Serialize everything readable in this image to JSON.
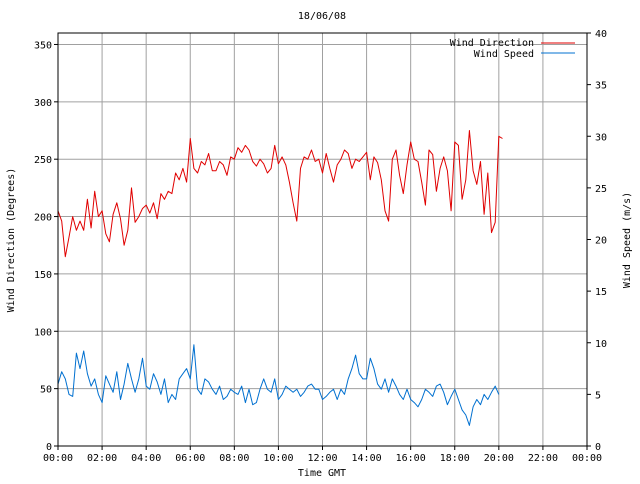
{
  "chart_data": {
    "type": "line",
    "title": "18/06/08",
    "xlabel": "Time GMT",
    "ylabel_left": "Wind Direction (Degrees)",
    "ylabel_right": "Wind Speed (m/s)",
    "x_ticks": [
      "00:00",
      "02:00",
      "04:00",
      "06:00",
      "08:00",
      "10:00",
      "12:00",
      "14:00",
      "16:00",
      "18:00",
      "20:00",
      "22:00",
      "00:00"
    ],
    "x_range_hours": [
      0,
      24
    ],
    "y_left_range": [
      0,
      360
    ],
    "y_left_ticks": [
      "0",
      "50",
      "100",
      "150",
      "200",
      "250",
      "300",
      "350"
    ],
    "y_right_range": [
      0,
      40
    ],
    "y_right_ticks": [
      "0",
      "5",
      "10",
      "15",
      "20",
      "25",
      "30",
      "35",
      "40"
    ],
    "grid": true,
    "legend_position": "top-right",
    "series": [
      {
        "name": "Wind Direction",
        "axis": "left",
        "color": "#e00000",
        "sample_interval_min": 10,
        "values": [
          205,
          196,
          165,
          182,
          200,
          188,
          196,
          188,
          215,
          190,
          222,
          200,
          205,
          185,
          178,
          202,
          212,
          198,
          175,
          188,
          225,
          195,
          200,
          207,
          210,
          203,
          212,
          198,
          220,
          215,
          222,
          220,
          238,
          232,
          242,
          230,
          268,
          242,
          238,
          248,
          245,
          255,
          240,
          240,
          248,
          245,
          236,
          252,
          250,
          260,
          256,
          262,
          258,
          248,
          244,
          250,
          246,
          238,
          242,
          262,
          246,
          252,
          245,
          230,
          212,
          196,
          242,
          252,
          250,
          258,
          248,
          250,
          238,
          255,
          242,
          230,
          245,
          250,
          258,
          255,
          242,
          250,
          248,
          252,
          256,
          232,
          252,
          247,
          232,
          205,
          196,
          250,
          258,
          236,
          220,
          245,
          265,
          250,
          248,
          230,
          210,
          258,
          254,
          222,
          242,
          252,
          240,
          205,
          265,
          262,
          215,
          232,
          275,
          240,
          228,
          248,
          202,
          238,
          186,
          195,
          270,
          268
        ]
      },
      {
        "name": "Wind Speed",
        "axis": "right",
        "color": "#0070d0",
        "sample_interval_min": 10,
        "values": [
          6,
          7.2,
          6.5,
          5,
          4.8,
          9,
          7.5,
          9.2,
          7,
          5.8,
          6.5,
          5,
          4.2,
          6.8,
          6,
          5.2,
          7.2,
          4.5,
          6,
          8,
          6.5,
          5.2,
          6.5,
          8.5,
          5.8,
          5.5,
          7,
          6.2,
          5,
          6.5,
          4.2,
          5,
          4.5,
          6.5,
          7,
          7.5,
          6.5,
          9.8,
          5.5,
          5,
          6.5,
          6.2,
          5.5,
          5,
          5.8,
          4.5,
          4.8,
          5.5,
          5.2,
          5,
          5.8,
          4.2,
          5.5,
          4,
          4.2,
          5.5,
          6.5,
          5.5,
          5.2,
          6.5,
          4.5,
          5,
          5.8,
          5.5,
          5.2,
          5.5,
          4.8,
          5.2,
          5.8,
          6,
          5.5,
          5.5,
          4.5,
          4.8,
          5.2,
          5.5,
          4.5,
          5.5,
          5,
          6.5,
          7.5,
          8.8,
          7,
          6.5,
          6.5,
          8.5,
          7.5,
          6,
          5.5,
          6.5,
          5.2,
          6.5,
          5.8,
          5,
          4.5,
          5.5,
          4.5,
          4.2,
          3.8,
          4.5,
          5.5,
          5.2,
          4.8,
          5.8,
          6,
          5.2,
          4,
          4.8,
          5.5,
          4.5,
          3.5,
          3,
          2,
          3.8,
          4.5,
          4,
          5,
          4.5,
          5.2,
          5.8,
          5
        ]
      }
    ]
  }
}
